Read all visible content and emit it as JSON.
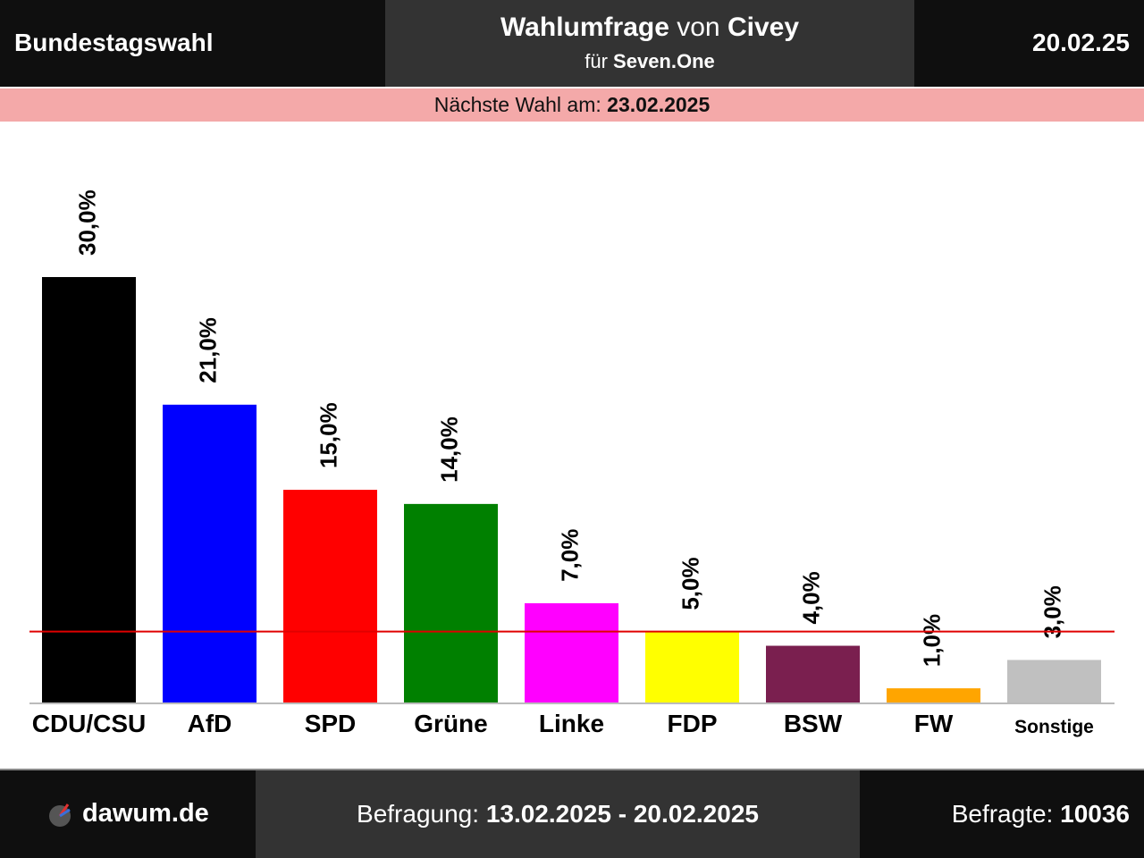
{
  "header": {
    "title": "Bundestagswahl",
    "poll_word": "Wahlumfrage",
    "von": "von",
    "institute": "Civey",
    "fuer": "für",
    "client": "Seven.One",
    "date": "20.02.25"
  },
  "next_election": {
    "label": "Nächste Wahl am:",
    "date": "23.02.2025"
  },
  "footer": {
    "site": "dawum.de",
    "period_label": "Befragung:",
    "period": "13.02.2025 - 20.02.2025",
    "respondents_label": "Befragte:",
    "respondents": "10036",
    "logo_icon": "dawum-logo-icon"
  },
  "chart_data": {
    "type": "bar",
    "categories": [
      "CDU/CSU",
      "AfD",
      "SPD",
      "Grüne",
      "Linke",
      "FDP",
      "BSW",
      "FW",
      "Sonstige"
    ],
    "values": [
      30.0,
      21.0,
      15.0,
      14.0,
      7.0,
      5.0,
      4.0,
      1.0,
      3.0
    ],
    "value_labels": [
      "30,0%",
      "21,0%",
      "15,0%",
      "14,0%",
      "7,0%",
      "5,0%",
      "4,0%",
      "1,0%",
      "3,0%"
    ],
    "colors": [
      "#000000",
      "#0000ff",
      "#ff0000",
      "#008000",
      "#ff00ff",
      "#ffff00",
      "#7a1f4f",
      "#ffa500",
      "#c0c0c0"
    ],
    "threshold": 5.0,
    "threshold_color": "#e00000",
    "ylim": [
      0,
      30
    ]
  }
}
